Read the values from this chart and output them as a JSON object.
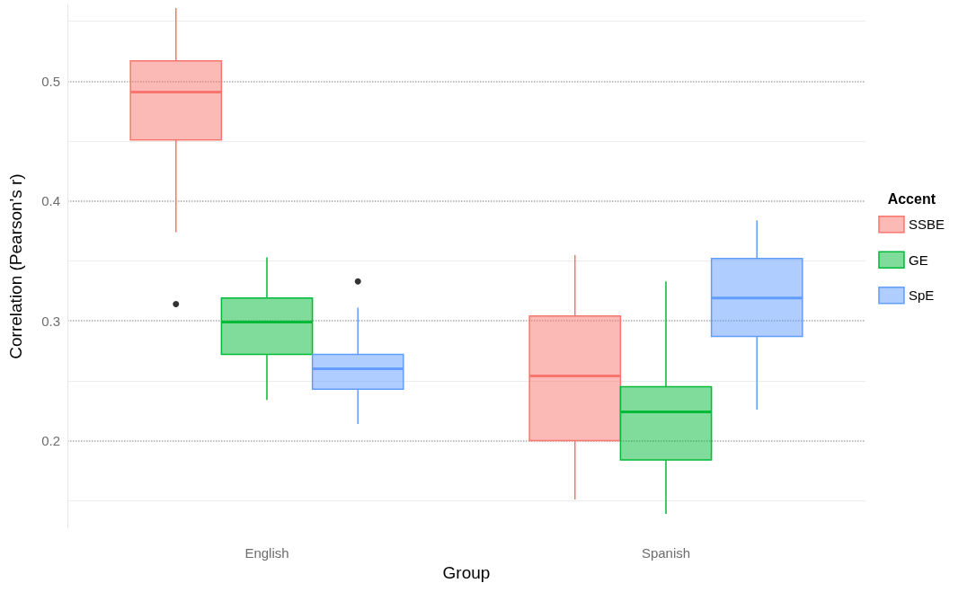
{
  "chart_data": {
    "type": "box",
    "xlabel": "Group",
    "ylabel": "Correlation (Pearson's r)",
    "legend_title": "Accent",
    "categories": [
      "English",
      "Spanish"
    ],
    "ylim": [
      0.127,
      0.564
    ],
    "yticks": [
      {
        "value": 0.15,
        "label": null
      },
      0.2,
      {
        "value": 0.25,
        "label": null
      },
      0.3,
      {
        "value": 0.35,
        "label": null
      },
      0.4,
      {
        "value": 0.45,
        "label": null
      },
      0.5,
      {
        "value": 0.55,
        "label": null
      }
    ],
    "grid": "y",
    "legend": "right",
    "series": [
      {
        "name": "SSBE",
        "color": "#f8766d",
        "boxes": [
          {
            "low": 0.374,
            "q1": 0.451,
            "median": 0.491,
            "q3": 0.517,
            "high": 0.561,
            "outliers": [
              0.314
            ]
          },
          {
            "low": 0.151,
            "q1": 0.2,
            "median": 0.254,
            "q3": 0.304,
            "high": 0.355
          }
        ]
      },
      {
        "name": "GE",
        "color": "#00ba38",
        "boxes": [
          {
            "low": 0.234,
            "q1": 0.272,
            "median": 0.299,
            "q3": 0.319,
            "high": 0.353
          },
          {
            "low": 0.139,
            "q1": 0.184,
            "median": 0.224,
            "q3": 0.245,
            "high": 0.333
          }
        ]
      },
      {
        "name": "SpE",
        "color": "#619cff",
        "boxes": [
          {
            "low": 0.214,
            "q1": 0.243,
            "median": 0.26,
            "q3": 0.272,
            "high": 0.311,
            "outliers": [
              0.333
            ]
          },
          {
            "low": 0.226,
            "q1": 0.287,
            "median": 0.319,
            "q3": 0.352,
            "high": 0.384
          }
        ]
      }
    ]
  }
}
